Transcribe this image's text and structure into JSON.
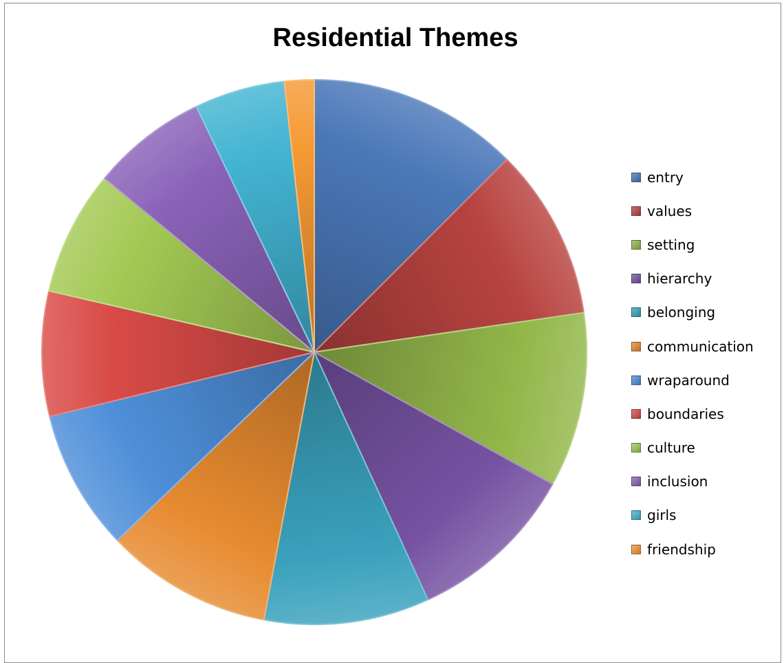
{
  "chart_data": {
    "type": "pie",
    "title": "Residential Themes",
    "legend_position": "right",
    "categories": [
      "entry",
      "values",
      "setting",
      "hierarchy",
      "belonging",
      "communication",
      "wraparound",
      "boundaries",
      "culture",
      "inclusion",
      "girls",
      "friendship"
    ],
    "values": [
      13.5,
      11.0,
      11.2,
      10.9,
      10.6,
      10.7,
      9.0,
      8.0,
      8.0,
      7.4,
      5.8,
      1.9
    ],
    "colors": [
      "#4a78b8",
      "#b84340",
      "#93b74a",
      "#7652a2",
      "#3aa1bd",
      "#e78b30",
      "#4e8fd9",
      "#d94b47",
      "#a3c954",
      "#8a62b8",
      "#43b4d2",
      "#f59a34"
    ]
  }
}
